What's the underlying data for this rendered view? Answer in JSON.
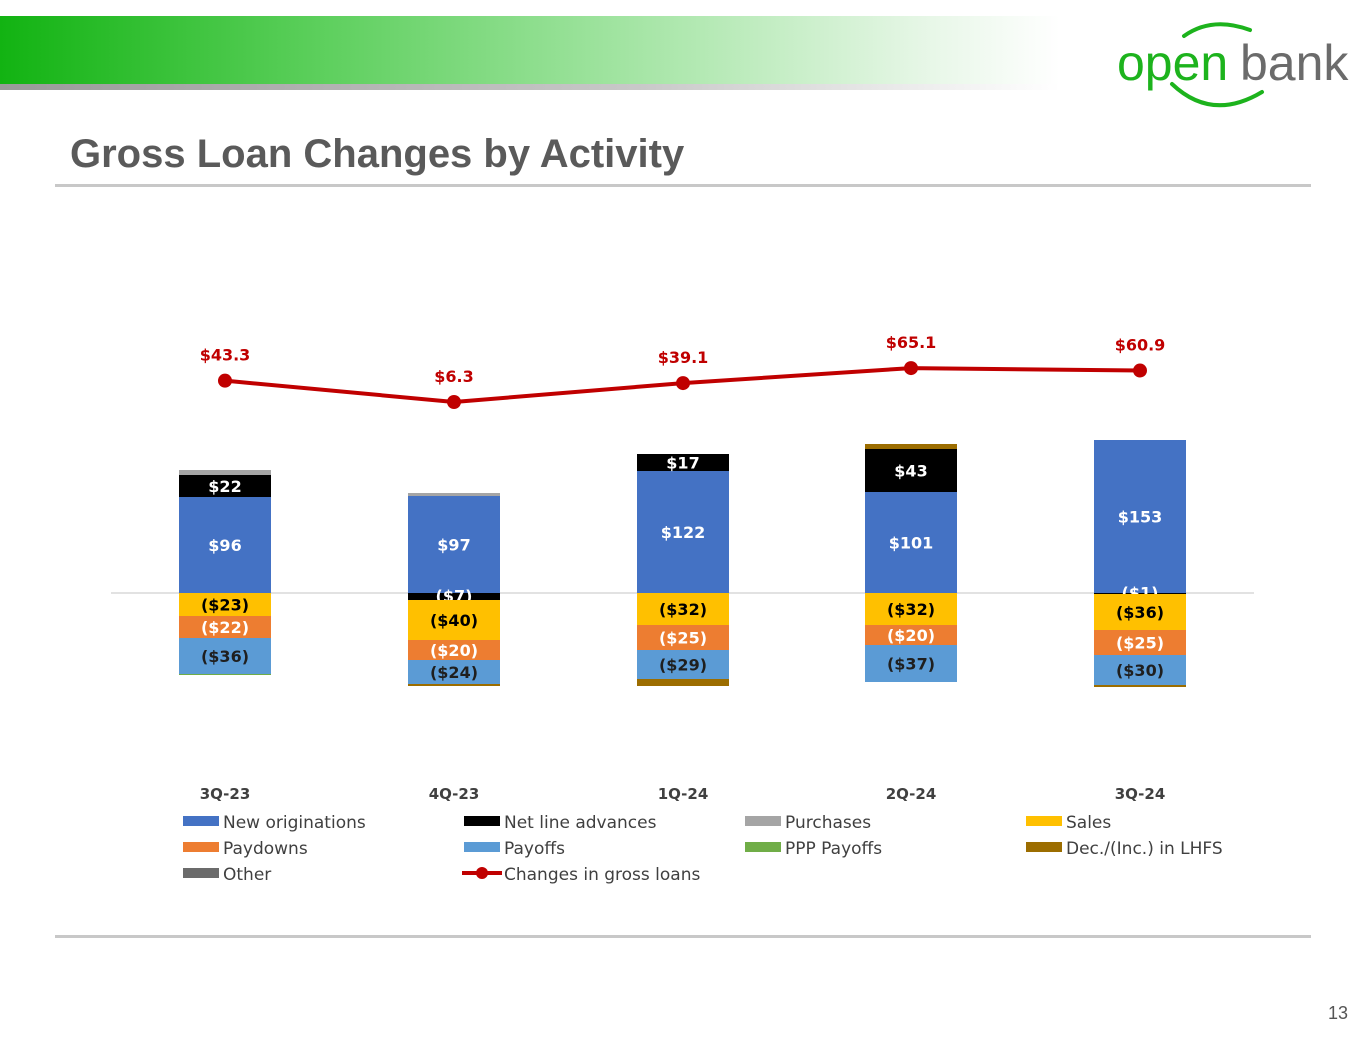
{
  "header": {
    "logo_text_open": "open",
    "logo_text_bank": "bank",
    "brand_color": "#1db31d",
    "logo_gray": "#6b6b6b"
  },
  "title": "Gross Loan Changes by Activity",
  "page_number": "13",
  "chart_data": {
    "type": "bar",
    "subtype": "stacked-bar-with-line",
    "categories": [
      "3Q-23",
      "4Q-23",
      "1Q-24",
      "2Q-24",
      "3Q-24"
    ],
    "series": [
      {
        "name": "New originations",
        "color": "#4472c4",
        "values": [
          96,
          97,
          122,
          101,
          153
        ],
        "labels": [
          "$96",
          "$97",
          "$122",
          "$101",
          "$153"
        ]
      },
      {
        "name": "Net line advances",
        "color": "#000000",
        "values": [
          22,
          -7,
          17,
          43,
          -1
        ],
        "labels": [
          "$22",
          "($7)",
          "$17",
          "$43",
          "($1)"
        ]
      },
      {
        "name": "Purchases",
        "color": "#a5a5a5",
        "values": [
          5,
          3,
          0,
          0,
          0
        ],
        "labels": [
          "",
          "",
          "",
          "",
          ""
        ]
      },
      {
        "name": "Sales",
        "color": "#ffc000",
        "values": [
          -23,
          -40,
          -32,
          -32,
          -36
        ],
        "labels": [
          "($23)",
          "($40)",
          "($32)",
          "($32)",
          "($36)"
        ]
      },
      {
        "name": "Paydowns",
        "color": "#ed7d31",
        "values": [
          -22,
          -20,
          -25,
          -20,
          -25
        ],
        "labels": [
          "($22)",
          "($20)",
          "($25)",
          "($20)",
          "($25)"
        ]
      },
      {
        "name": "Payoffs",
        "color": "#5b9bd5",
        "values": [
          -36,
          -24,
          -29,
          -37,
          -30
        ],
        "labels": [
          "($36)",
          "($24)",
          "($29)",
          "($37)",
          "($30)"
        ]
      },
      {
        "name": "PPP Payoffs",
        "color": "#70ad47",
        "values": [
          -1,
          0,
          0,
          0,
          0
        ],
        "labels": [
          "",
          "",
          "",
          "",
          ""
        ]
      },
      {
        "name": "Dec./(Inc.) in LHFS",
        "color": "#9c6d00",
        "values": [
          0,
          -2,
          -7,
          5,
          -2
        ],
        "labels": [
          "",
          "",
          "",
          "",
          ""
        ]
      },
      {
        "name": "Other",
        "color": "#6b6b6b",
        "values": [
          0,
          0,
          0,
          0,
          0
        ],
        "labels": [
          "",
          "",
          "",
          "",
          ""
        ]
      }
    ],
    "line_series": {
      "name": "Changes in gross loans",
      "color": "#c00000",
      "values": [
        43.3,
        6.3,
        39.1,
        65.1,
        60.9
      ],
      "labels": [
        "$43.3",
        "$6.3",
        "$39.1",
        "$65.1",
        "$60.9"
      ]
    },
    "legend_position": "bottom",
    "grid": false,
    "value_format": "$ millions"
  }
}
